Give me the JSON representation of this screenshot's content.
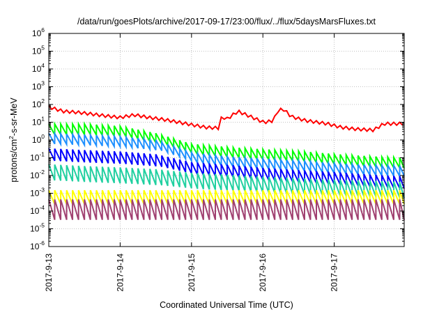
{
  "chart_data": {
    "type": "line",
    "title": "/data/run/goesPlots/archive/2017-09-17/23:00/flux/../flux/5daysMarsFluxes.txt",
    "xlabel": "Coordinated Universal Time (UTC)",
    "ylabel": "protons/cm2-s-sr-MeV",
    "y_scale": "log",
    "ylim": [
      1e-06,
      1000000.0
    ],
    "y_ticks": [
      {
        "value": 1e-06,
        "base": "10",
        "exp": "-6"
      },
      {
        "value": 1e-05,
        "base": "10",
        "exp": "-5"
      },
      {
        "value": 0.0001,
        "base": "10",
        "exp": "-4"
      },
      {
        "value": 0.001,
        "base": "10",
        "exp": "-3"
      },
      {
        "value": 0.01,
        "base": "10",
        "exp": "-2"
      },
      {
        "value": 0.1,
        "base": "10",
        "exp": "-1"
      },
      {
        "value": 1,
        "base": "10",
        "exp": "0"
      },
      {
        "value": 10.0,
        "base": "10",
        "exp": "1"
      },
      {
        "value": 100.0,
        "base": "10",
        "exp": "2"
      },
      {
        "value": 1000.0,
        "base": "10",
        "exp": "3"
      },
      {
        "value": 10000.0,
        "base": "10",
        "exp": "4"
      },
      {
        "value": 100000.0,
        "base": "10",
        "exp": "5"
      },
      {
        "value": 1000000.0,
        "base": "10",
        "exp": "6"
      }
    ],
    "x_unit": "days since 2017-09-13 00:00 UTC",
    "xlim": [
      0,
      4.98
    ],
    "x_ticks": [
      {
        "value": 0,
        "label": "2017-9-13"
      },
      {
        "value": 1,
        "label": "2017-9-14"
      },
      {
        "value": 2,
        "label": "2017-9-15"
      },
      {
        "value": 3,
        "label": "2017-9-16"
      },
      {
        "value": 4,
        "label": "2017-9-17"
      }
    ],
    "grid": true,
    "legend": "none",
    "series": [
      {
        "color": "#ff0000",
        "profile": "steps",
        "points": [
          [
            0,
            70
          ],
          [
            0.2,
            40
          ],
          [
            0.4,
            35
          ],
          [
            0.6,
            28
          ],
          [
            0.8,
            22
          ],
          [
            1.0,
            18
          ],
          [
            1.2,
            25
          ],
          [
            1.4,
            18
          ],
          [
            1.6,
            14
          ],
          [
            1.8,
            10
          ],
          [
            2.0,
            7
          ],
          [
            2.2,
            5
          ],
          [
            2.4,
            4.5
          ],
          [
            2.42,
            20
          ],
          [
            2.5,
            15
          ],
          [
            2.65,
            40
          ],
          [
            2.9,
            15
          ],
          [
            3.0,
            10
          ],
          [
            3.05,
            10
          ],
          [
            3.15,
            12
          ],
          [
            3.2,
            40
          ],
          [
            3.28,
            55
          ],
          [
            3.4,
            20
          ],
          [
            3.6,
            12
          ],
          [
            3.9,
            8
          ],
          [
            4.1,
            5
          ],
          [
            4.3,
            4
          ],
          [
            4.55,
            3.5
          ],
          [
            4.7,
            8
          ],
          [
            4.98,
            8
          ]
        ]
      },
      {
        "color": "#00ff00",
        "profile": "sawtooth",
        "amp": 4,
        "points": [
          [
            0,
            4
          ],
          [
            0.5,
            4
          ],
          [
            1.0,
            3
          ],
          [
            1.1,
            2.5
          ],
          [
            1.5,
            1.2
          ],
          [
            2.0,
            0.3
          ],
          [
            2.5,
            0.2
          ],
          [
            3.0,
            0.15
          ],
          [
            3.5,
            0.12
          ],
          [
            4.0,
            0.08
          ],
          [
            4.5,
            0.06
          ],
          [
            4.98,
            0.05
          ]
        ]
      },
      {
        "color": "#1e90ff",
        "profile": "sawtooth",
        "amp": 4,
        "points": [
          [
            0,
            1.2
          ],
          [
            0.5,
            1.0
          ],
          [
            1.0,
            0.8
          ],
          [
            1.5,
            0.5
          ],
          [
            2.0,
            0.1
          ],
          [
            2.5,
            0.06
          ],
          [
            3.0,
            0.045
          ],
          [
            3.5,
            0.035
          ],
          [
            4.0,
            0.025
          ],
          [
            4.5,
            0.02
          ],
          [
            4.98,
            0.018
          ]
        ]
      },
      {
        "color": "#0000ff",
        "profile": "sawtooth",
        "amp": 5,
        "points": [
          [
            0,
            0.15
          ],
          [
            0.5,
            0.12
          ],
          [
            1.0,
            0.1
          ],
          [
            1.5,
            0.07
          ],
          [
            2.0,
            0.025
          ],
          [
            2.5,
            0.018
          ],
          [
            3.0,
            0.012
          ],
          [
            3.5,
            0.009
          ],
          [
            4.0,
            0.007
          ],
          [
            4.5,
            0.005
          ],
          [
            4.98,
            0.004
          ]
        ]
      },
      {
        "color": "#20d0a0",
        "profile": "sawtooth",
        "amp": 8,
        "points": [
          [
            0,
            0.015
          ],
          [
            0.5,
            0.012
          ],
          [
            1.0,
            0.01
          ],
          [
            1.5,
            0.008
          ],
          [
            2.0,
            0.005
          ],
          [
            2.5,
            0.004
          ],
          [
            3.0,
            0.003
          ],
          [
            3.5,
            0.0025
          ],
          [
            4.0,
            0.002
          ],
          [
            4.5,
            0.0018
          ],
          [
            4.98,
            0.0015
          ]
        ]
      },
      {
        "color": "#ffff00",
        "profile": "sawtooth",
        "amp": 6,
        "points": [
          [
            0,
            0.0006
          ],
          [
            1.0,
            0.0006
          ],
          [
            2.0,
            0.0006
          ],
          [
            3.0,
            0.0006
          ],
          [
            4.0,
            0.0006
          ],
          [
            4.98,
            0.0006
          ]
        ]
      },
      {
        "color": "#a04070",
        "profile": "sawtooth",
        "amp": 14,
        "points": [
          [
            0,
            0.00012
          ],
          [
            1.0,
            0.00012
          ],
          [
            2.0,
            0.00012
          ],
          [
            3.0,
            0.00012
          ],
          [
            4.0,
            0.00012
          ],
          [
            4.98,
            0.00012
          ]
        ]
      }
    ]
  }
}
